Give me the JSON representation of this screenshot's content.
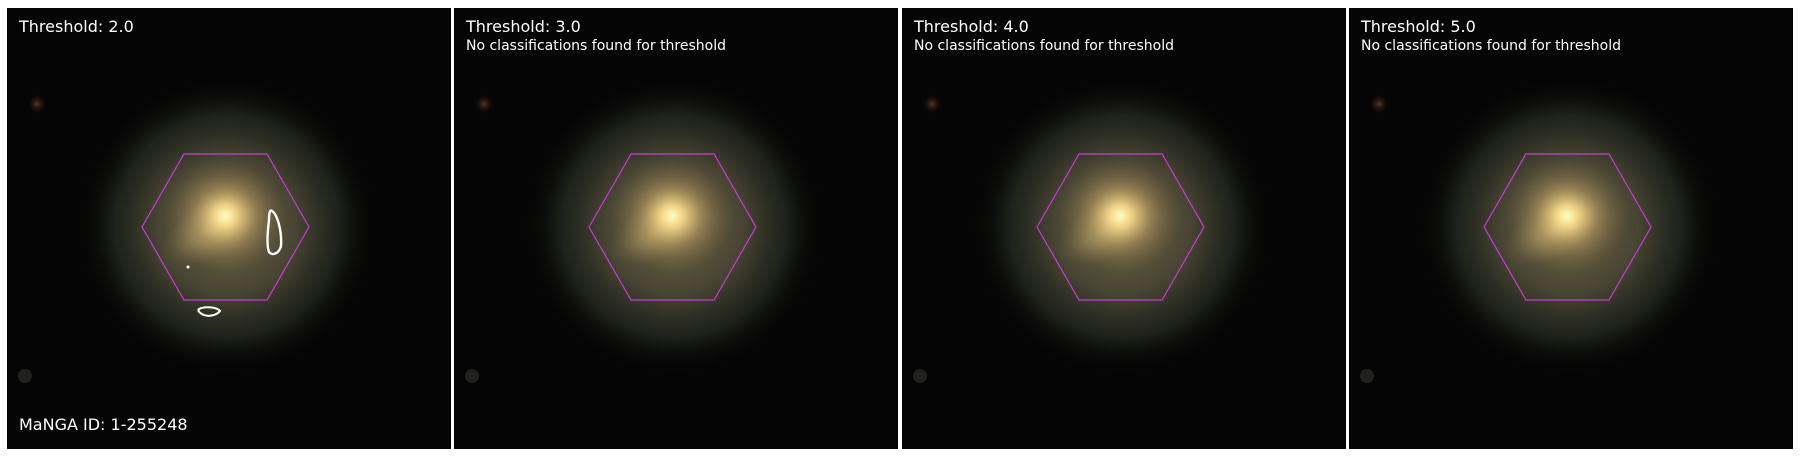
{
  "panels": [
    {
      "title": "Threshold: 2.0",
      "subtitle": "",
      "footer": "MaNGA ID: 1-255248",
      "has_contours": true
    },
    {
      "title": "Threshold: 3.0",
      "subtitle": "No classifications found for threshold",
      "footer": "",
      "has_contours": false
    },
    {
      "title": "Threshold: 4.0",
      "subtitle": "No classifications found for threshold",
      "footer": "",
      "has_contours": false
    },
    {
      "title": "Threshold: 5.0",
      "subtitle": "No classifications found for threshold",
      "footer": "",
      "has_contours": false
    }
  ],
  "colors": {
    "hexagon": "#c83cd2",
    "contour": "#ffffff",
    "background": "#050505"
  }
}
